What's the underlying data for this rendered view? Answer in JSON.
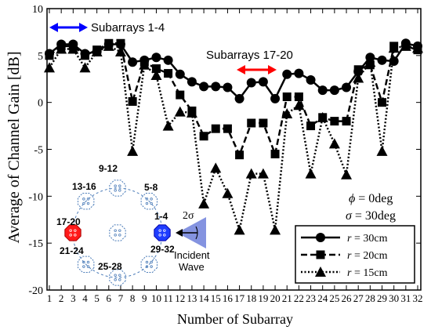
{
  "chart_data": {
    "type": "line",
    "title": "",
    "xlabel": "Number of Subarray",
    "ylabel": "Average of Channel Gain [dB]",
    "xlim": [
      1,
      32
    ],
    "ylim": [
      -20,
      10
    ],
    "yticks": [
      10,
      5,
      0,
      -5,
      -10,
      -15,
      -20
    ],
    "x": [
      1,
      2,
      3,
      4,
      5,
      6,
      7,
      8,
      9,
      10,
      11,
      12,
      13,
      14,
      15,
      16,
      17,
      18,
      19,
      20,
      21,
      22,
      23,
      24,
      25,
      26,
      27,
      28,
      29,
      30,
      31,
      32
    ],
    "series": [
      {
        "name": "r = 30cm",
        "r_value": "30cm",
        "line_style": "solid",
        "marker": "circle",
        "values": [
          5.2,
          6.2,
          6.2,
          5.2,
          5.4,
          6.2,
          6.2,
          4.3,
          4.5,
          4.8,
          4.5,
          3.0,
          2.2,
          1.7,
          1.7,
          1.6,
          0.4,
          2.1,
          2.2,
          0.4,
          3.0,
          3.1,
          2.4,
          1.3,
          1.3,
          1.6,
          3.3,
          4.8,
          4.5,
          4.4,
          6.3,
          6.0
        ]
      },
      {
        "name": "r = 20cm",
        "r_value": "20cm",
        "line_style": "dashed",
        "marker": "square",
        "values": [
          5.0,
          6.0,
          6.0,
          5.0,
          5.6,
          6.3,
          6.3,
          0.1,
          4.3,
          3.6,
          3.1,
          0.8,
          -0.9,
          -3.6,
          -2.8,
          -2.8,
          -5.6,
          -2.2,
          -2.2,
          -5.5,
          0.6,
          0.6,
          -2.5,
          -1.6,
          -2.0,
          -2.0,
          3.5,
          4.0,
          0.0,
          6.0,
          6.0,
          5.6
        ]
      },
      {
        "name": "r = 15cm",
        "r_value": "15cm",
        "line_style": "dotted",
        "marker": "triangle",
        "values": [
          3.7,
          5.7,
          5.7,
          3.7,
          5.4,
          6.0,
          5.4,
          -5.2,
          4.0,
          2.9,
          -2.5,
          -1.0,
          -1.1,
          -10.8,
          -7.0,
          -9.7,
          -13.6,
          -7.6,
          -7.6,
          -13.6,
          -1.2,
          -0.3,
          -7.6,
          -1.6,
          -4.4,
          -7.7,
          2.6,
          4.3,
          -5.2,
          5.8,
          6.0,
          5.8
        ]
      }
    ],
    "legend_position": "bottom-right",
    "grid": false,
    "annotations": {
      "subarrays_1_4": "Subarrays 1-4",
      "subarrays_17_20": "Subarrays 17-20",
      "phi_symbol": "ϕ",
      "phi_text": " = 0deg",
      "sigma_symbol": "σ",
      "sigma_text": " = 30deg",
      "incident_line1": "Incident",
      "incident_line2": "Wave",
      "two_sigma": "2σ"
    },
    "inset_labels": [
      "9-12",
      "13-16",
      "5-8",
      "17-20",
      "1-4",
      "21-24",
      "29-32",
      "25-28"
    ],
    "legend_r_symbol": "r",
    "colors": {
      "line": "#000000",
      "arrow_blue": "#0000ff",
      "arrow_red": "#ff0000",
      "highlight_blue": "#1f3dff",
      "highlight_red": "#ff1a1a",
      "wave_fill": "#5b6fd6",
      "inset_dash": "#4a7bb8"
    }
  }
}
